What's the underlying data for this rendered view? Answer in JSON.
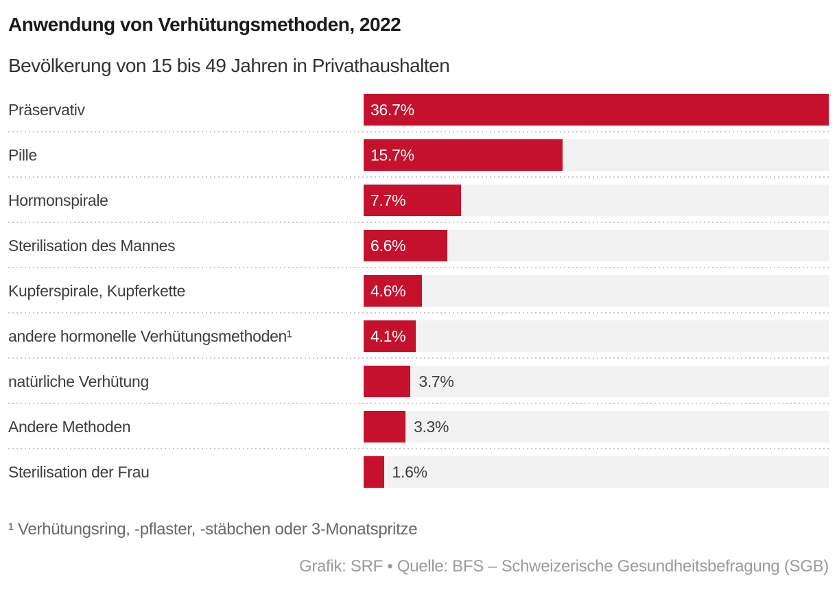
{
  "header": {
    "title": "Anwendung von Verhütungsmethoden, 2022",
    "subtitle": "Bevölkerung von 15 bis 49 Jahren in Privathaushalten"
  },
  "chart_data": {
    "type": "bar",
    "orientation": "horizontal",
    "title": "Anwendung von Verhütungsmethoden, 2022",
    "subtitle": "Bevölkerung von 15 bis 49 Jahren in Privathaushalten",
    "categories": [
      "Präservativ",
      "Pille",
      "Hormonspirale",
      "Sterilisation des Mannes",
      "Kupferspirale, Kupferkette",
      "andere hormonelle Verhütungsmethoden¹",
      "natürliche Verhütung",
      "Andere Methoden",
      "Sterilisation der Frau"
    ],
    "values": [
      36.7,
      15.7,
      7.7,
      6.6,
      4.6,
      4.1,
      3.7,
      3.3,
      1.6
    ],
    "value_labels": [
      "36.7%",
      "15.7%",
      "7.7%",
      "6.6%",
      "4.6%",
      "4.1%",
      "3.7%",
      "3.3%",
      "1.6%"
    ],
    "xlim": [
      0,
      36.7
    ],
    "grid": false,
    "legend": false,
    "bar_color": "#c5112c",
    "track_color": "#f2f2f2",
    "separator_color": "#c9c9c9",
    "value_label_inside_color": "#ffffff",
    "value_label_outside_color": "#3d3d3d"
  },
  "footnote": "¹ Verhütungsring, -pflaster, -stäbchen oder 3-Monatspritze",
  "source": "Grafik: SRF • Quelle: BFS – Schweizerische Gesundheitsbefragung (SGB)"
}
